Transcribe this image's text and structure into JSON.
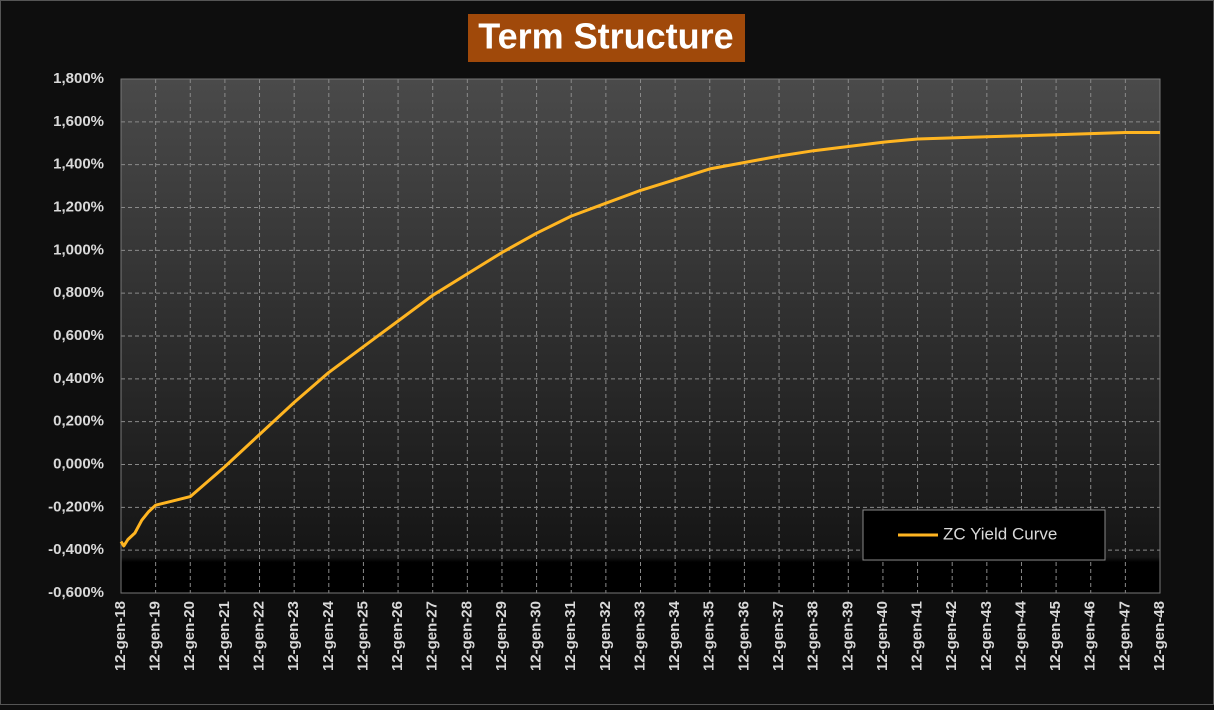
{
  "chart_data": {
    "type": "line",
    "title": "Term Structure",
    "x": [
      2018.0,
      2018.08,
      2018.2,
      2018.4,
      2018.6,
      2018.8,
      2019.0,
      2019.5,
      2020.0,
      2021,
      2022,
      2023,
      2024,
      2025,
      2026,
      2027,
      2028,
      2029,
      2030,
      2031,
      2032,
      2033,
      2034,
      2035,
      2036,
      2037,
      2038,
      2039,
      2040,
      2041,
      2042,
      2043,
      2044,
      2045,
      2046,
      2047,
      2048
    ],
    "series": [
      {
        "name": "ZC Yield Curve",
        "color": "#ffb521",
        "values": [
          -0.36,
          -0.38,
          -0.35,
          -0.32,
          -0.26,
          -0.22,
          -0.19,
          -0.17,
          -0.15,
          -0.01,
          0.14,
          0.29,
          0.43,
          0.55,
          0.67,
          0.79,
          0.89,
          0.99,
          1.08,
          1.16,
          1.22,
          1.28,
          1.33,
          1.38,
          1.41,
          1.44,
          1.465,
          1.485,
          1.505,
          1.52,
          1.525,
          1.53,
          1.535,
          1.54,
          1.545,
          1.55,
          1.55
        ]
      }
    ],
    "xlim": [
      2018,
      2048
    ],
    "xticks": [
      {
        "value": 2018,
        "label": "12-gen-18"
      },
      {
        "value": 2019,
        "label": "12-gen-19"
      },
      {
        "value": 2020,
        "label": "12-gen-20"
      },
      {
        "value": 2021,
        "label": "12-gen-21"
      },
      {
        "value": 2022,
        "label": "12-gen-22"
      },
      {
        "value": 2023,
        "label": "12-gen-23"
      },
      {
        "value": 2024,
        "label": "12-gen-24"
      },
      {
        "value": 2025,
        "label": "12-gen-25"
      },
      {
        "value": 2026,
        "label": "12-gen-26"
      },
      {
        "value": 2027,
        "label": "12-gen-27"
      },
      {
        "value": 2028,
        "label": "12-gen-28"
      },
      {
        "value": 2029,
        "label": "12-gen-29"
      },
      {
        "value": 2030,
        "label": "12-gen-30"
      },
      {
        "value": 2031,
        "label": "12-gen-31"
      },
      {
        "value": 2032,
        "label": "12-gen-32"
      },
      {
        "value": 2033,
        "label": "12-gen-33"
      },
      {
        "value": 2034,
        "label": "12-gen-34"
      },
      {
        "value": 2035,
        "label": "12-gen-35"
      },
      {
        "value": 2036,
        "label": "12-gen-36"
      },
      {
        "value": 2037,
        "label": "12-gen-37"
      },
      {
        "value": 2038,
        "label": "12-gen-38"
      },
      {
        "value": 2039,
        "label": "12-gen-39"
      },
      {
        "value": 2040,
        "label": "12-gen-40"
      },
      {
        "value": 2041,
        "label": "12-gen-41"
      },
      {
        "value": 2042,
        "label": "12-gen-42"
      },
      {
        "value": 2043,
        "label": "12-gen-43"
      },
      {
        "value": 2044,
        "label": "12-gen-44"
      },
      {
        "value": 2045,
        "label": "12-gen-45"
      },
      {
        "value": 2046,
        "label": "12-gen-46"
      },
      {
        "value": 2047,
        "label": "12-gen-47"
      },
      {
        "value": 2048,
        "label": "12-gen-48"
      }
    ],
    "ylim": [
      -0.6,
      1.8
    ],
    "yticks": [
      {
        "value": -0.6,
        "label": "-0,600%"
      },
      {
        "value": -0.4,
        "label": "-0,400%"
      },
      {
        "value": -0.2,
        "label": "-0,200%"
      },
      {
        "value": 0,
        "label": "0,000%"
      },
      {
        "value": 0.2,
        "label": "0,200%"
      },
      {
        "value": 0.4,
        "label": "0,400%"
      },
      {
        "value": 0.6,
        "label": "0,600%"
      },
      {
        "value": 0.8,
        "label": "0,800%"
      },
      {
        "value": 1.0,
        "label": "1,000%"
      },
      {
        "value": 1.2,
        "label": "1,200%"
      },
      {
        "value": 1.4,
        "label": "1,400%"
      },
      {
        "value": 1.6,
        "label": "1,600%"
      },
      {
        "value": 1.8,
        "label": "1,800%"
      }
    ],
    "grid": true,
    "legend": "lower-right"
  }
}
